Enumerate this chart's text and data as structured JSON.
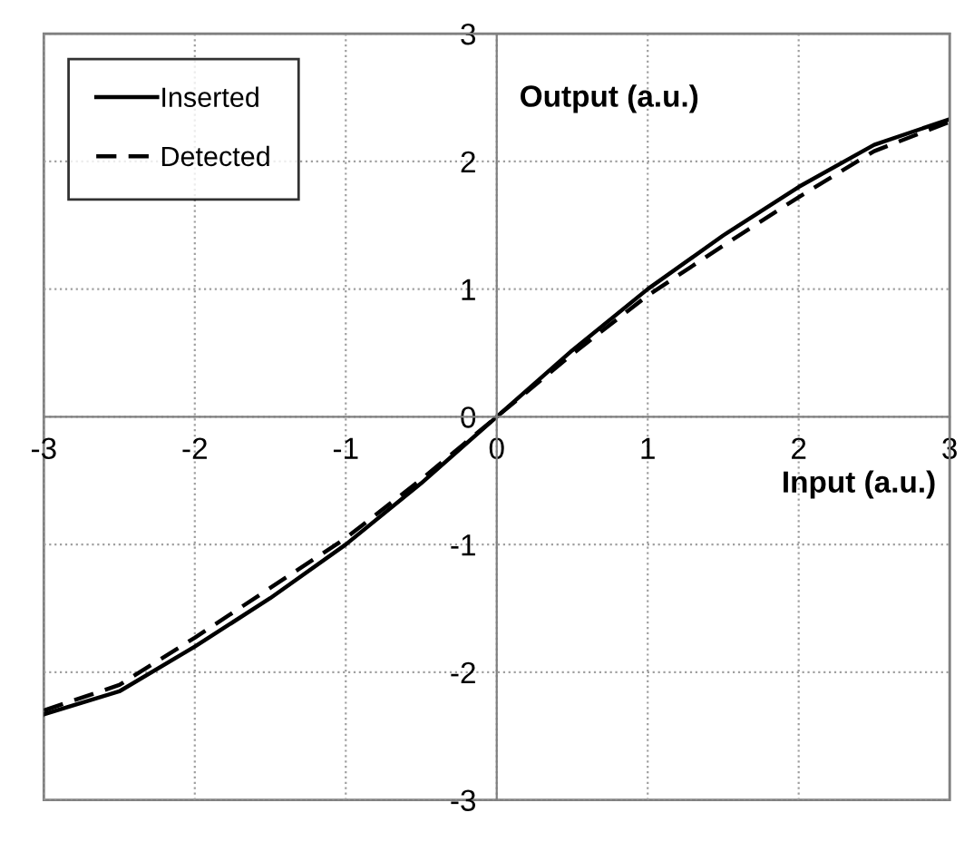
{
  "chart_data": {
    "type": "line",
    "xlabel": "Input (a.u.)",
    "ylabel": "Output (a.u.)",
    "x": [
      -3,
      -2.5,
      -2,
      -1.5,
      -1,
      -0.5,
      0,
      0.5,
      1,
      1.5,
      2,
      2.5,
      3
    ],
    "series": [
      {
        "name": "Inserted",
        "color": "#000000",
        "line_style": "solid",
        "values": [
          -2.33,
          -2.15,
          -1.8,
          -1.42,
          -1.0,
          -0.52,
          0,
          0.52,
          1.0,
          1.42,
          1.8,
          2.13,
          2.33
        ]
      },
      {
        "name": "Detected",
        "color": "#000000",
        "line_style": "dashed",
        "values": [
          -2.3,
          -2.1,
          -1.73,
          -1.34,
          -0.95,
          -0.49,
          0,
          0.49,
          0.95,
          1.34,
          1.72,
          2.08,
          2.31
        ]
      }
    ],
    "xlim": [
      -3,
      3
    ],
    "ylim": [
      -3,
      3
    ],
    "xticks": [
      -3,
      -2,
      -1,
      0,
      1,
      2,
      3
    ],
    "yticks": [
      -3,
      -2,
      -1,
      0,
      1,
      2,
      3
    ],
    "grid": true,
    "legend": "top left",
    "marker": "none"
  }
}
